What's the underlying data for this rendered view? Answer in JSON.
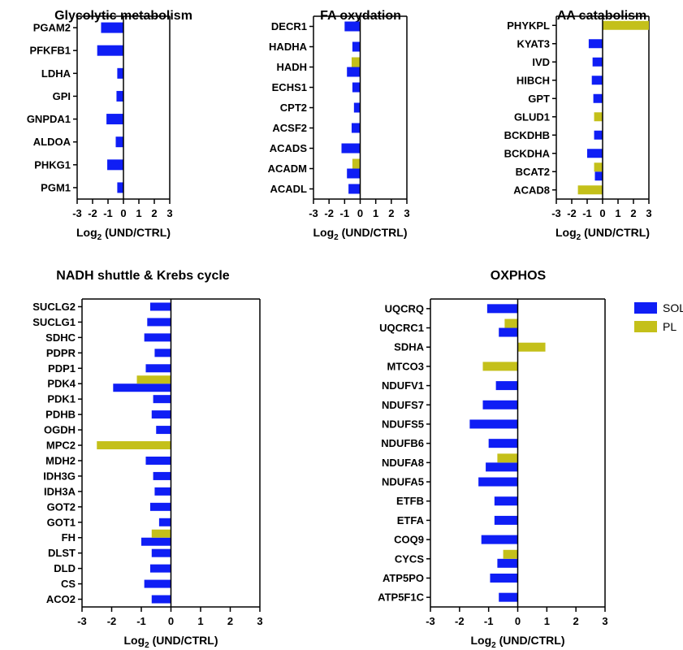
{
  "colors": {
    "SOL": "#0f1ef5",
    "PL": "#c4c01a"
  },
  "legend": [
    {
      "name": "SOL",
      "color": "#0f1ef5"
    },
    {
      "name": "PL",
      "color": "#c4c01a"
    }
  ],
  "chart_data": [
    {
      "type": "bar",
      "orientation": "horizontal",
      "title": "Glycolytic metabolism",
      "xlabel": {
        "main": "Log",
        "sub": "2",
        "rest": " (UND/CTRL)"
      },
      "xlim": [
        -3,
        3
      ],
      "xticks": [
        "-3",
        "-2",
        "-1",
        "0",
        "1",
        "2",
        "3"
      ],
      "categories": [
        "PGAM2",
        "PFKFB1",
        "LDHA",
        "GPI",
        "GNPDA1",
        "ALDOA",
        "PHKG1",
        "PGM1"
      ],
      "series": [
        {
          "name": "SOL",
          "values": [
            -1.45,
            -1.7,
            -0.4,
            -0.45,
            -1.1,
            -0.5,
            -1.05,
            -0.4
          ]
        },
        {
          "name": "PL",
          "values": [
            null,
            null,
            null,
            null,
            null,
            null,
            null,
            null
          ]
        }
      ]
    },
    {
      "type": "bar",
      "orientation": "horizontal",
      "title": "FA oxydation",
      "xlabel": {
        "main": "Log",
        "sub": "2",
        "rest": " (UND/CTRL)"
      },
      "xlim": [
        -3,
        3
      ],
      "xticks": [
        "-3",
        "-2",
        "-1",
        "0",
        "1",
        "2",
        "3"
      ],
      "categories": [
        "DECR1",
        "HADHA",
        "HADH",
        "ECHS1",
        "CPT2",
        "ACSF2",
        "ACADS",
        "ACADM",
        "ACADL"
      ],
      "series": [
        {
          "name": "SOL",
          "values": [
            -1.0,
            -0.5,
            -0.85,
            -0.5,
            -0.4,
            -0.55,
            -1.2,
            -0.85,
            -0.75
          ]
        },
        {
          "name": "PL",
          "values": [
            null,
            null,
            -0.55,
            null,
            null,
            null,
            null,
            -0.5,
            null
          ]
        }
      ]
    },
    {
      "type": "bar",
      "orientation": "horizontal",
      "title": "AA catabolism",
      "xlabel": {
        "main": "Log",
        "sub": "2",
        "rest": " (UND/CTRL)"
      },
      "xlim": [
        -3,
        3
      ],
      "xticks": [
        "-3",
        "-2",
        "-1",
        "0",
        "1",
        "2",
        "3"
      ],
      "categories": [
        "PHYKPL",
        "KYAT3",
        "IVD",
        "HIBCH",
        "GPT",
        "GLUD1",
        "BCKDHB",
        "BCKDHA",
        "BCAT2",
        "ACAD8"
      ],
      "series": [
        {
          "name": "SOL",
          "values": [
            null,
            -0.9,
            -0.65,
            -0.7,
            -0.6,
            null,
            -0.55,
            -1.0,
            -0.5,
            null
          ]
        },
        {
          "name": "PL",
          "values": [
            3.0,
            null,
            null,
            null,
            null,
            -0.55,
            null,
            null,
            -0.55,
            -1.6
          ]
        }
      ]
    },
    {
      "type": "bar",
      "orientation": "horizontal",
      "title": "NADH shuttle & Krebs cycle",
      "xlabel": {
        "main": "Log",
        "sub": "2",
        "rest": " (UND/CTRL)"
      },
      "xlim": [
        -3,
        3
      ],
      "xticks": [
        "-3",
        "-2",
        "-1",
        "0",
        "1",
        "2",
        "3"
      ],
      "categories": [
        "SUCLG2",
        "SUCLG1",
        "SDHC",
        "PDPR",
        "PDP1",
        "PDK4",
        "PDK1",
        "PDHB",
        "OGDH",
        "MPC2",
        "MDH2",
        "IDH3G",
        "IDH3A",
        "GOT2",
        "GOT1",
        "FH",
        "DLST",
        "DLD",
        "CS",
        "ACO2"
      ],
      "series": [
        {
          "name": "SOL",
          "values": [
            -0.7,
            -0.8,
            -0.9,
            -0.55,
            -0.85,
            -1.95,
            -0.6,
            -0.65,
            -0.5,
            null,
            -0.85,
            -0.6,
            -0.55,
            -0.7,
            -0.4,
            -1.0,
            -0.65,
            -0.7,
            -0.9,
            -0.65
          ]
        },
        {
          "name": "PL",
          "values": [
            null,
            null,
            null,
            null,
            null,
            -1.15,
            null,
            null,
            null,
            -2.5,
            null,
            null,
            null,
            null,
            null,
            -0.65,
            null,
            null,
            null,
            null
          ]
        }
      ]
    },
    {
      "type": "bar",
      "orientation": "horizontal",
      "title": "OXPHOS",
      "xlabel": {
        "main": "Log",
        "sub": "2",
        "rest": " (UND/CTRL)"
      },
      "xlim": [
        -3,
        3
      ],
      "xticks": [
        "-3",
        "-2",
        "-1",
        "0",
        "1",
        "2",
        "3"
      ],
      "categories": [
        "UQCRQ",
        "UQCRC1",
        "SDHA",
        "MTCO3",
        "NDUFV1",
        "NDUFS7",
        "NDUFS5",
        "NDUFB6",
        "NDUFA8",
        "NDUFA5",
        "ETFB",
        "ETFA",
        "COQ9",
        "CYCS",
        "ATP5PO",
        "ATP5F1C"
      ],
      "series": [
        {
          "name": "SOL",
          "values": [
            -1.05,
            -0.65,
            null,
            null,
            -0.75,
            -1.2,
            -1.65,
            -1.0,
            -1.1,
            -1.35,
            -0.8,
            -0.8,
            -1.25,
            -0.7,
            -0.95,
            -0.65
          ]
        },
        {
          "name": "PL",
          "values": [
            null,
            -0.45,
            0.95,
            -1.2,
            null,
            null,
            null,
            null,
            -0.7,
            null,
            null,
            null,
            null,
            -0.5,
            null,
            null
          ]
        }
      ]
    }
  ]
}
